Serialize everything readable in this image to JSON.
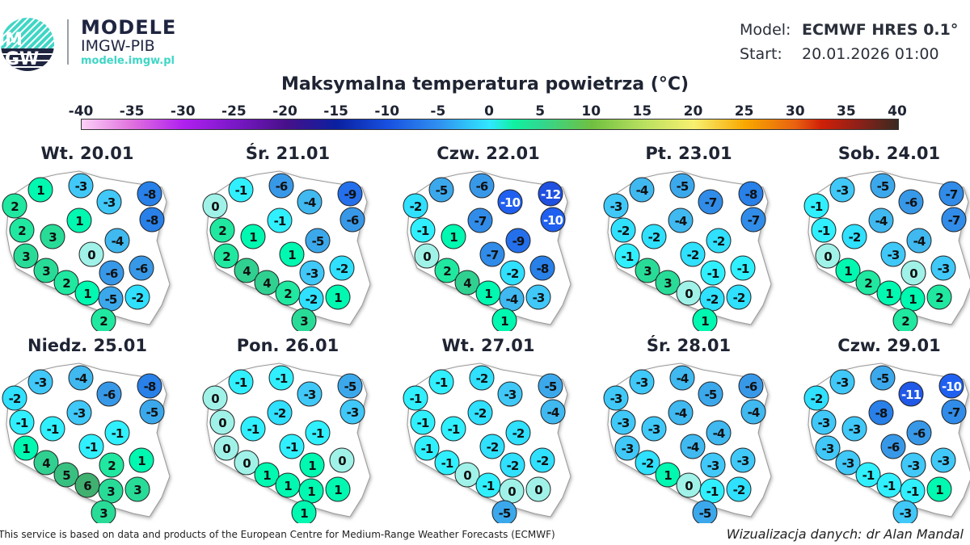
{
  "logo": {
    "line1": "MODELE",
    "line2": "IMGW-PIB",
    "url": "modele.imgw.pl",
    "badge": "IMGW"
  },
  "meta": {
    "model_label": "Model:",
    "model_value": "ECMWF HRES 0.1°",
    "start_label": "Start:",
    "start_value": "20.01.2026 01:00"
  },
  "title": "Maksymalna temperatura powietrza (°C)",
  "colorbar": {
    "ticks": [
      "-40",
      "-35",
      "-30",
      "-25",
      "-20",
      "-15",
      "-10",
      "-5",
      "0",
      "5",
      "10",
      "15",
      "20",
      "25",
      "30",
      "35",
      "40"
    ],
    "range": [
      -40,
      40
    ]
  },
  "days": [
    {
      "label": "Wt. 20.01",
      "values": [
        1,
        -3,
        2,
        -3,
        -8,
        -8,
        1,
        2,
        3,
        -4,
        0,
        3,
        -6,
        -6,
        3,
        2,
        1,
        -5,
        -2,
        2
      ]
    },
    {
      "label": "Śr. 21.01",
      "values": [
        -1,
        -6,
        0,
        -4,
        -9,
        -6,
        -1,
        2,
        1,
        -5,
        1,
        2,
        -3,
        -2,
        4,
        4,
        2,
        -2,
        1,
        3
      ]
    },
    {
      "label": "Czw. 22.01",
      "values": [
        -5,
        -6,
        -2,
        -10,
        -12,
        -10,
        -7,
        -1,
        1,
        -9,
        -7,
        0,
        -2,
        -8,
        2,
        4,
        1,
        -4,
        -3,
        1
      ]
    },
    {
      "label": "Pt. 23.01",
      "values": [
        -4,
        -5,
        -3,
        -7,
        -8,
        -7,
        -4,
        -2,
        -2,
        -2,
        -2,
        -1,
        -1,
        -1,
        3,
        3,
        0,
        -2,
        -2,
        1
      ]
    },
    {
      "label": "Sob. 24.01",
      "values": [
        -3,
        -5,
        -1,
        -6,
        -7,
        -7,
        -4,
        -1,
        -2,
        -4,
        -3,
        0,
        0,
        -3,
        1,
        2,
        1,
        1,
        2,
        2
      ]
    },
    {
      "label": "Niedz. 25.01",
      "values": [
        -3,
        -4,
        -2,
        -6,
        -8,
        -5,
        -3,
        -1,
        -1,
        -1,
        -1,
        1,
        2,
        1,
        4,
        5,
        6,
        3,
        3,
        3
      ]
    },
    {
      "label": "Pon. 26.01",
      "values": [
        -1,
        -1,
        0,
        -3,
        -5,
        -3,
        -2,
        0,
        -1,
        -1,
        -1,
        0,
        1,
        0,
        0,
        1,
        1,
        1,
        1,
        1
      ]
    },
    {
      "label": "Wt. 27.01",
      "values": [
        -1,
        -2,
        -1,
        -3,
        -5,
        -4,
        -2,
        -1,
        -1,
        -2,
        -2,
        -1,
        -2,
        -2,
        -1,
        0,
        -1,
        0,
        0,
        -5
      ]
    },
    {
      "label": "Śr. 28.01",
      "values": [
        -3,
        -4,
        -3,
        -5,
        -6,
        -4,
        -4,
        -3,
        -3,
        -4,
        -4,
        -3,
        -3,
        -3,
        -2,
        1,
        0,
        -1,
        -2,
        -5
      ]
    },
    {
      "label": "Czw. 29.01",
      "values": [
        -3,
        -5,
        -2,
        -11,
        -10,
        -7,
        -8,
        -3,
        -3,
        -6,
        -6,
        -3,
        -3,
        -3,
        -3,
        -1,
        -1,
        -1,
        1,
        -3
      ]
    }
  ],
  "footer": {
    "left": "This service is based on data and products of the European Centre for Medium-Range Weather Forecasts (ECMWF)",
    "right": "Wizualizacja danych: dr Alan Mandal"
  }
}
